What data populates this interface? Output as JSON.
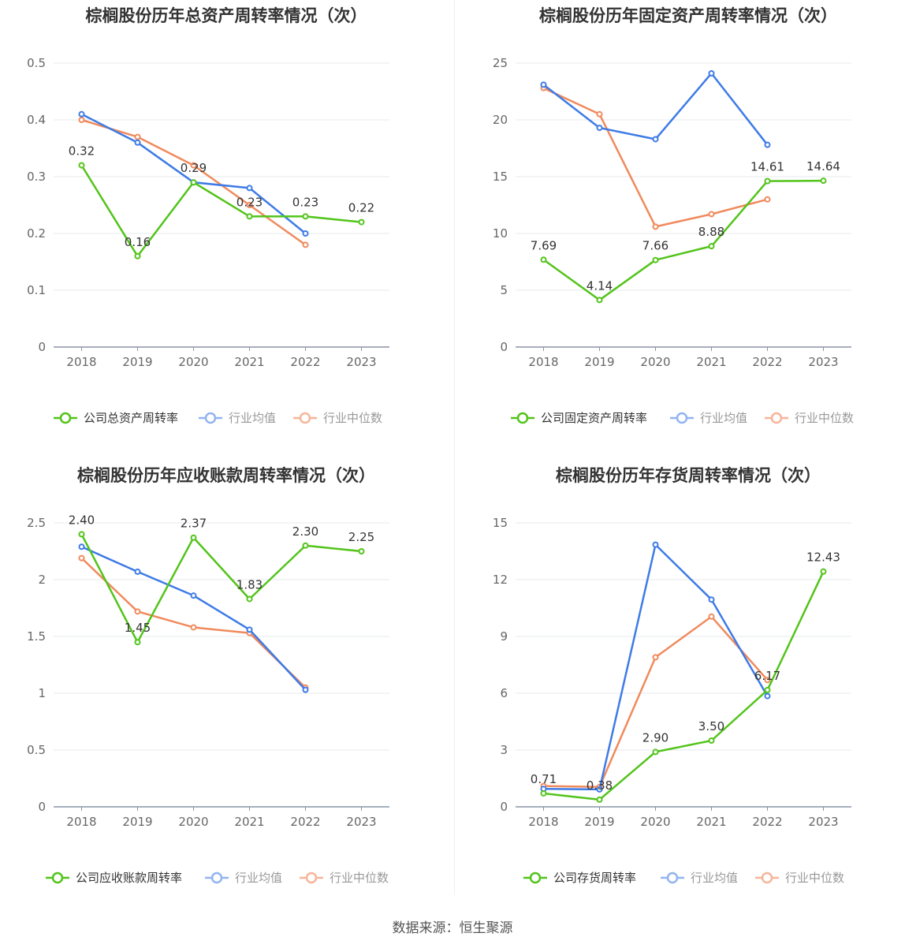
{
  "footer": {
    "source": "数据来源：恒生聚源"
  },
  "chart_data": [
    {
      "type": "line",
      "title": "棕榈股份历年总资产周转率情况（次）",
      "categories": [
        "2018",
        "2019",
        "2020",
        "2021",
        "2022",
        "2023"
      ],
      "ylim": [
        0,
        0.5
      ],
      "yticks": [
        "0",
        "0.1",
        "0.2",
        "0.3",
        "0.4",
        "0.5"
      ],
      "grid": true,
      "legend": "bottom",
      "series": [
        {
          "name": "公司总资产周转率",
          "color": "#52c41a",
          "labeled": true,
          "values": [
            0.32,
            0.16,
            0.29,
            0.23,
            0.23,
            0.22
          ],
          "labels": [
            "0.32",
            "0.16",
            "0.29",
            "0.23",
            "0.23",
            "0.22"
          ]
        },
        {
          "name": "行业均值",
          "color": "#3e7be6",
          "values": [
            0.41,
            0.36,
            0.29,
            0.28,
            0.2,
            null
          ]
        },
        {
          "name": "行业中位数",
          "color": "#f08a5d",
          "values": [
            0.4,
            0.37,
            0.32,
            0.25,
            0.18,
            null
          ]
        }
      ]
    },
    {
      "type": "line",
      "title": "棕榈股份历年固定资产周转率情况（次）",
      "categories": [
        "2018",
        "2019",
        "2020",
        "2021",
        "2022",
        "2023"
      ],
      "ylim": [
        0,
        25
      ],
      "yticks": [
        "0",
        "5",
        "10",
        "15",
        "20",
        "25"
      ],
      "grid": true,
      "legend": "bottom",
      "series": [
        {
          "name": "公司固定资产周转率",
          "color": "#52c41a",
          "labeled": true,
          "values": [
            7.69,
            4.14,
            7.66,
            8.88,
            14.61,
            14.64
          ],
          "labels": [
            "7.69",
            "4.14",
            "7.66",
            "8.88",
            "14.61",
            "14.64"
          ]
        },
        {
          "name": "行业均值",
          "color": "#3e7be6",
          "values": [
            23.1,
            19.3,
            18.3,
            24.1,
            17.8,
            null
          ]
        },
        {
          "name": "行业中位数",
          "color": "#f08a5d",
          "values": [
            22.8,
            20.5,
            10.6,
            11.7,
            13.0,
            null
          ]
        }
      ]
    },
    {
      "type": "line",
      "title": "棕榈股份历年应收账款周转率情况（次）",
      "categories": [
        "2018",
        "2019",
        "2020",
        "2021",
        "2022",
        "2023"
      ],
      "ylim": [
        0,
        2.5
      ],
      "yticks": [
        "0",
        "0.5",
        "1",
        "1.5",
        "2",
        "2.5"
      ],
      "grid": true,
      "legend": "bottom",
      "series": [
        {
          "name": "公司应收账款周转率",
          "color": "#52c41a",
          "labeled": true,
          "values": [
            2.4,
            1.45,
            2.37,
            1.83,
            2.3,
            2.25
          ],
          "labels": [
            "2.40",
            "1.45",
            "2.37",
            "1.83",
            "2.30",
            "2.25"
          ]
        },
        {
          "name": "行业均值",
          "color": "#3e7be6",
          "values": [
            2.29,
            2.07,
            1.86,
            1.56,
            1.03,
            null
          ]
        },
        {
          "name": "行业中位数",
          "color": "#f08a5d",
          "values": [
            2.19,
            1.72,
            1.58,
            1.53,
            1.05,
            null
          ]
        }
      ]
    },
    {
      "type": "line",
      "title": "棕榈股份历年存货周转率情况（次）",
      "categories": [
        "2018",
        "2019",
        "2020",
        "2021",
        "2022",
        "2023"
      ],
      "ylim": [
        0,
        15
      ],
      "yticks": [
        "0",
        "3",
        "6",
        "9",
        "12",
        "15"
      ],
      "grid": true,
      "legend": "bottom",
      "series": [
        {
          "name": "公司存货周转率",
          "color": "#52c41a",
          "labeled": true,
          "values": [
            0.71,
            0.38,
            2.9,
            3.5,
            6.17,
            12.43
          ],
          "labels": [
            "0.71",
            "0.38",
            "2.90",
            "3.50",
            "6.17",
            "12.43"
          ]
        },
        {
          "name": "行业均值",
          "color": "#3e7be6",
          "values": [
            0.95,
            0.92,
            13.85,
            10.95,
            5.85,
            null
          ]
        },
        {
          "name": "行业中位数",
          "color": "#f08a5d",
          "values": [
            1.1,
            1.05,
            7.9,
            10.05,
            6.7,
            null
          ]
        }
      ]
    }
  ]
}
